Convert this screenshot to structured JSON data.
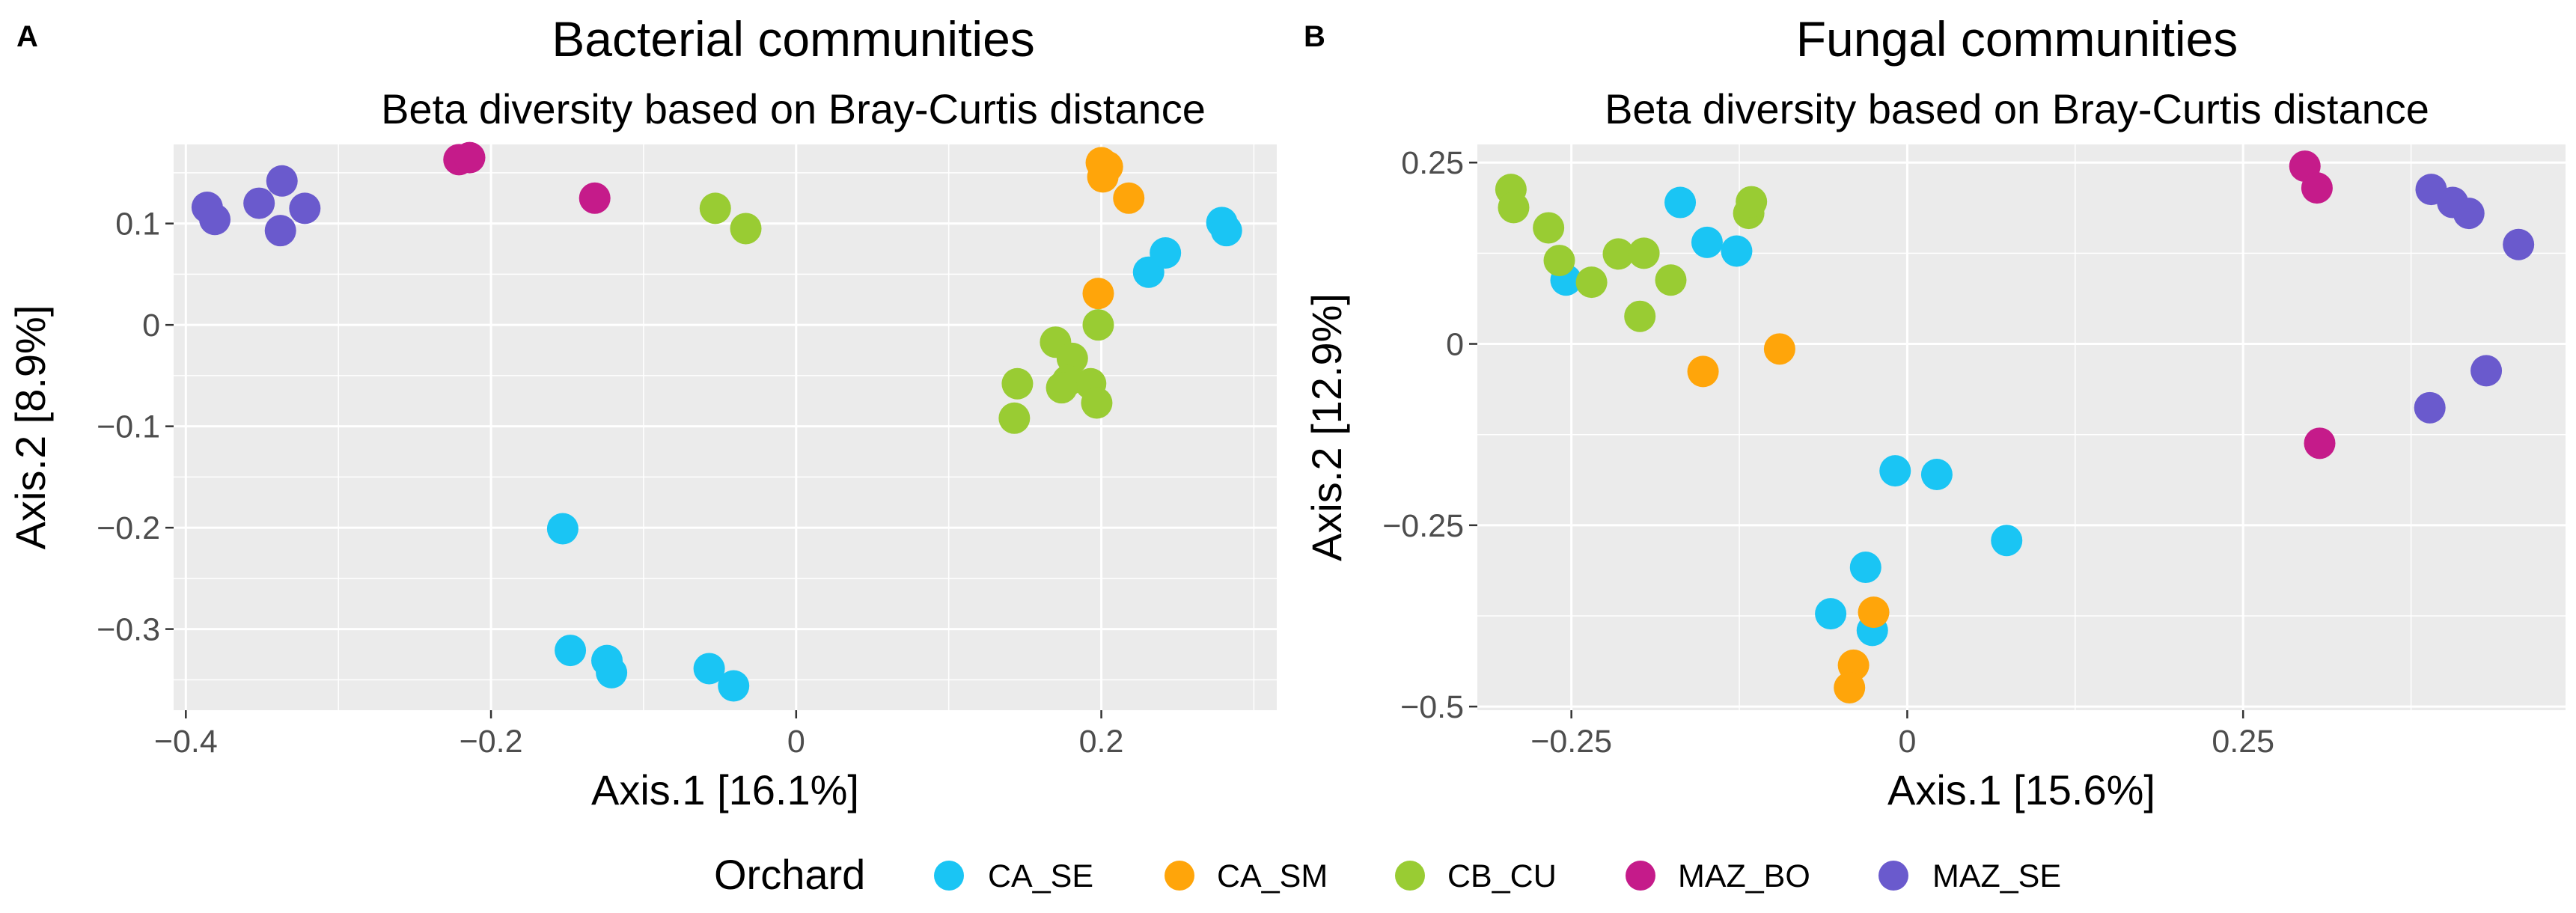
{
  "chart_data": [
    {
      "type": "scatter",
      "panel_label": "A",
      "title": "Bacterial communities",
      "subtitle": "Beta diversity based on Bray-Curtis distance",
      "xlabel": "Axis.1   [16.1%]",
      "ylabel": "Axis.2   [8.9%]",
      "xlim": [
        -0.408,
        0.315
      ],
      "ylim": [
        -0.38,
        0.178
      ],
      "xticks": [
        -0.4,
        -0.2,
        0,
        0.2
      ],
      "xtick_labels": [
        "−0.4",
        "−0.2",
        "0",
        "0.2"
      ],
      "yticks": [
        -0.3,
        -0.2,
        -0.1,
        0,
        0.1
      ],
      "ytick_labels": [
        "−0.3",
        "−0.2",
        "−0.1",
        "0",
        "0.1"
      ],
      "grid": true,
      "series": [
        {
          "name": "CA_SE",
          "color": "#1ac5f4",
          "points": [
            [
              -0.153,
              -0.201
            ],
            [
              -0.148,
              -0.321
            ],
            [
              -0.124,
              -0.331
            ],
            [
              -0.121,
              -0.343
            ],
            [
              -0.057,
              -0.339
            ],
            [
              -0.041,
              -0.356
            ],
            [
              0.231,
              0.052
            ],
            [
              0.242,
              0.071
            ],
            [
              0.279,
              0.101
            ],
            [
              0.282,
              0.093
            ]
          ]
        },
        {
          "name": "CA_SM",
          "color": "#ffa50a",
          "points": [
            [
              0.2,
              0.16
            ],
            [
              0.204,
              0.156
            ],
            [
              0.201,
              0.146
            ],
            [
              0.218,
              0.125
            ],
            [
              0.198,
              0.031
            ]
          ]
        },
        {
          "name": "CB_CU",
          "color": "#99cc33",
          "points": [
            [
              -0.053,
              0.115
            ],
            [
              -0.033,
              0.095
            ],
            [
              0.17,
              -0.017
            ],
            [
              0.181,
              -0.033
            ],
            [
              0.145,
              -0.058
            ],
            [
              0.178,
              -0.055
            ],
            [
              0.193,
              -0.058
            ],
            [
              0.198,
              0.0
            ],
            [
              0.143,
              -0.092
            ],
            [
              0.197,
              -0.077
            ],
            [
              0.174,
              -0.062
            ]
          ]
        },
        {
          "name": "MAZ_BO",
          "color": "#c51b8a",
          "points": [
            [
              -0.221,
              0.163
            ],
            [
              -0.214,
              0.165
            ],
            [
              -0.132,
              0.125
            ]
          ]
        },
        {
          "name": "MAZ_SE",
          "color": "#6a5acd",
          "points": [
            [
              -0.386,
              0.116
            ],
            [
              -0.381,
              0.104
            ],
            [
              -0.352,
              0.12
            ],
            [
              -0.337,
              0.142
            ],
            [
              -0.322,
              0.115
            ],
            [
              -0.338,
              0.093
            ]
          ]
        }
      ]
    },
    {
      "type": "scatter",
      "panel_label": "B",
      "title": "Fungal communities",
      "subtitle": "Beta diversity based on Bray-Curtis distance",
      "xlabel": "Axis.1   [15.6%]",
      "ylabel": "Axis.2   [12.9%]",
      "xlim": [
        -0.32,
        0.49
      ],
      "ylim": [
        -0.505,
        0.275
      ],
      "xticks": [
        -0.25,
        0,
        0.25
      ],
      "xtick_labels": [
        "−0.25",
        "0",
        "0.25"
      ],
      "yticks": [
        -0.5,
        -0.25,
        0,
        0.25
      ],
      "ytick_labels": [
        "−0.5",
        "−0.25",
        "0",
        "0.25"
      ],
      "grid": true,
      "series": [
        {
          "name": "CA_SE",
          "color": "#1ac5f4",
          "points": [
            [
              -0.254,
              0.088
            ],
            [
              -0.169,
              0.195
            ],
            [
              -0.149,
              0.14
            ],
            [
              -0.127,
              0.128
            ],
            [
              -0.009,
              -0.175
            ],
            [
              0.022,
              -0.18
            ],
            [
              0.074,
              -0.271
            ],
            [
              -0.031,
              -0.308
            ],
            [
              -0.057,
              -0.372
            ],
            [
              -0.026,
              -0.395
            ]
          ]
        },
        {
          "name": "CA_SM",
          "color": "#ffa50a",
          "points": [
            [
              -0.152,
              -0.038
            ],
            [
              -0.095,
              -0.007
            ],
            [
              -0.025,
              -0.37
            ],
            [
              -0.04,
              -0.443
            ],
            [
              -0.043,
              -0.474
            ]
          ]
        },
        {
          "name": "CB_CU",
          "color": "#99cc33",
          "points": [
            [
              -0.295,
              0.213
            ],
            [
              -0.293,
              0.188
            ],
            [
              -0.267,
              0.16
            ],
            [
              -0.259,
              0.115
            ],
            [
              -0.235,
              0.085
            ],
            [
              -0.215,
              0.124
            ],
            [
              -0.196,
              0.125
            ],
            [
              -0.176,
              0.088
            ],
            [
              -0.199,
              0.038
            ],
            [
              -0.118,
              0.18
            ],
            [
              -0.116,
              0.196
            ]
          ]
        },
        {
          "name": "MAZ_BO",
          "color": "#c51b8a",
          "points": [
            [
              0.296,
              0.245
            ],
            [
              0.305,
              0.215
            ],
            [
              0.307,
              -0.137
            ]
          ]
        },
        {
          "name": "MAZ_SE",
          "color": "#6a5acd",
          "points": [
            [
              0.39,
              0.213
            ],
            [
              0.406,
              0.195
            ],
            [
              0.418,
              0.18
            ],
            [
              0.455,
              0.137
            ],
            [
              0.389,
              -0.088
            ],
            [
              0.431,
              -0.037
            ]
          ]
        }
      ]
    }
  ],
  "legend": {
    "title": "Orchard",
    "items": [
      {
        "label": "CA_SE",
        "color": "#1ac5f4"
      },
      {
        "label": "CA_SM",
        "color": "#ffa50a"
      },
      {
        "label": "CB_CU",
        "color": "#99cc33"
      },
      {
        "label": "MAZ_BO",
        "color": "#c51b8a"
      },
      {
        "label": "MAZ_SE",
        "color": "#6a5acd"
      }
    ]
  }
}
